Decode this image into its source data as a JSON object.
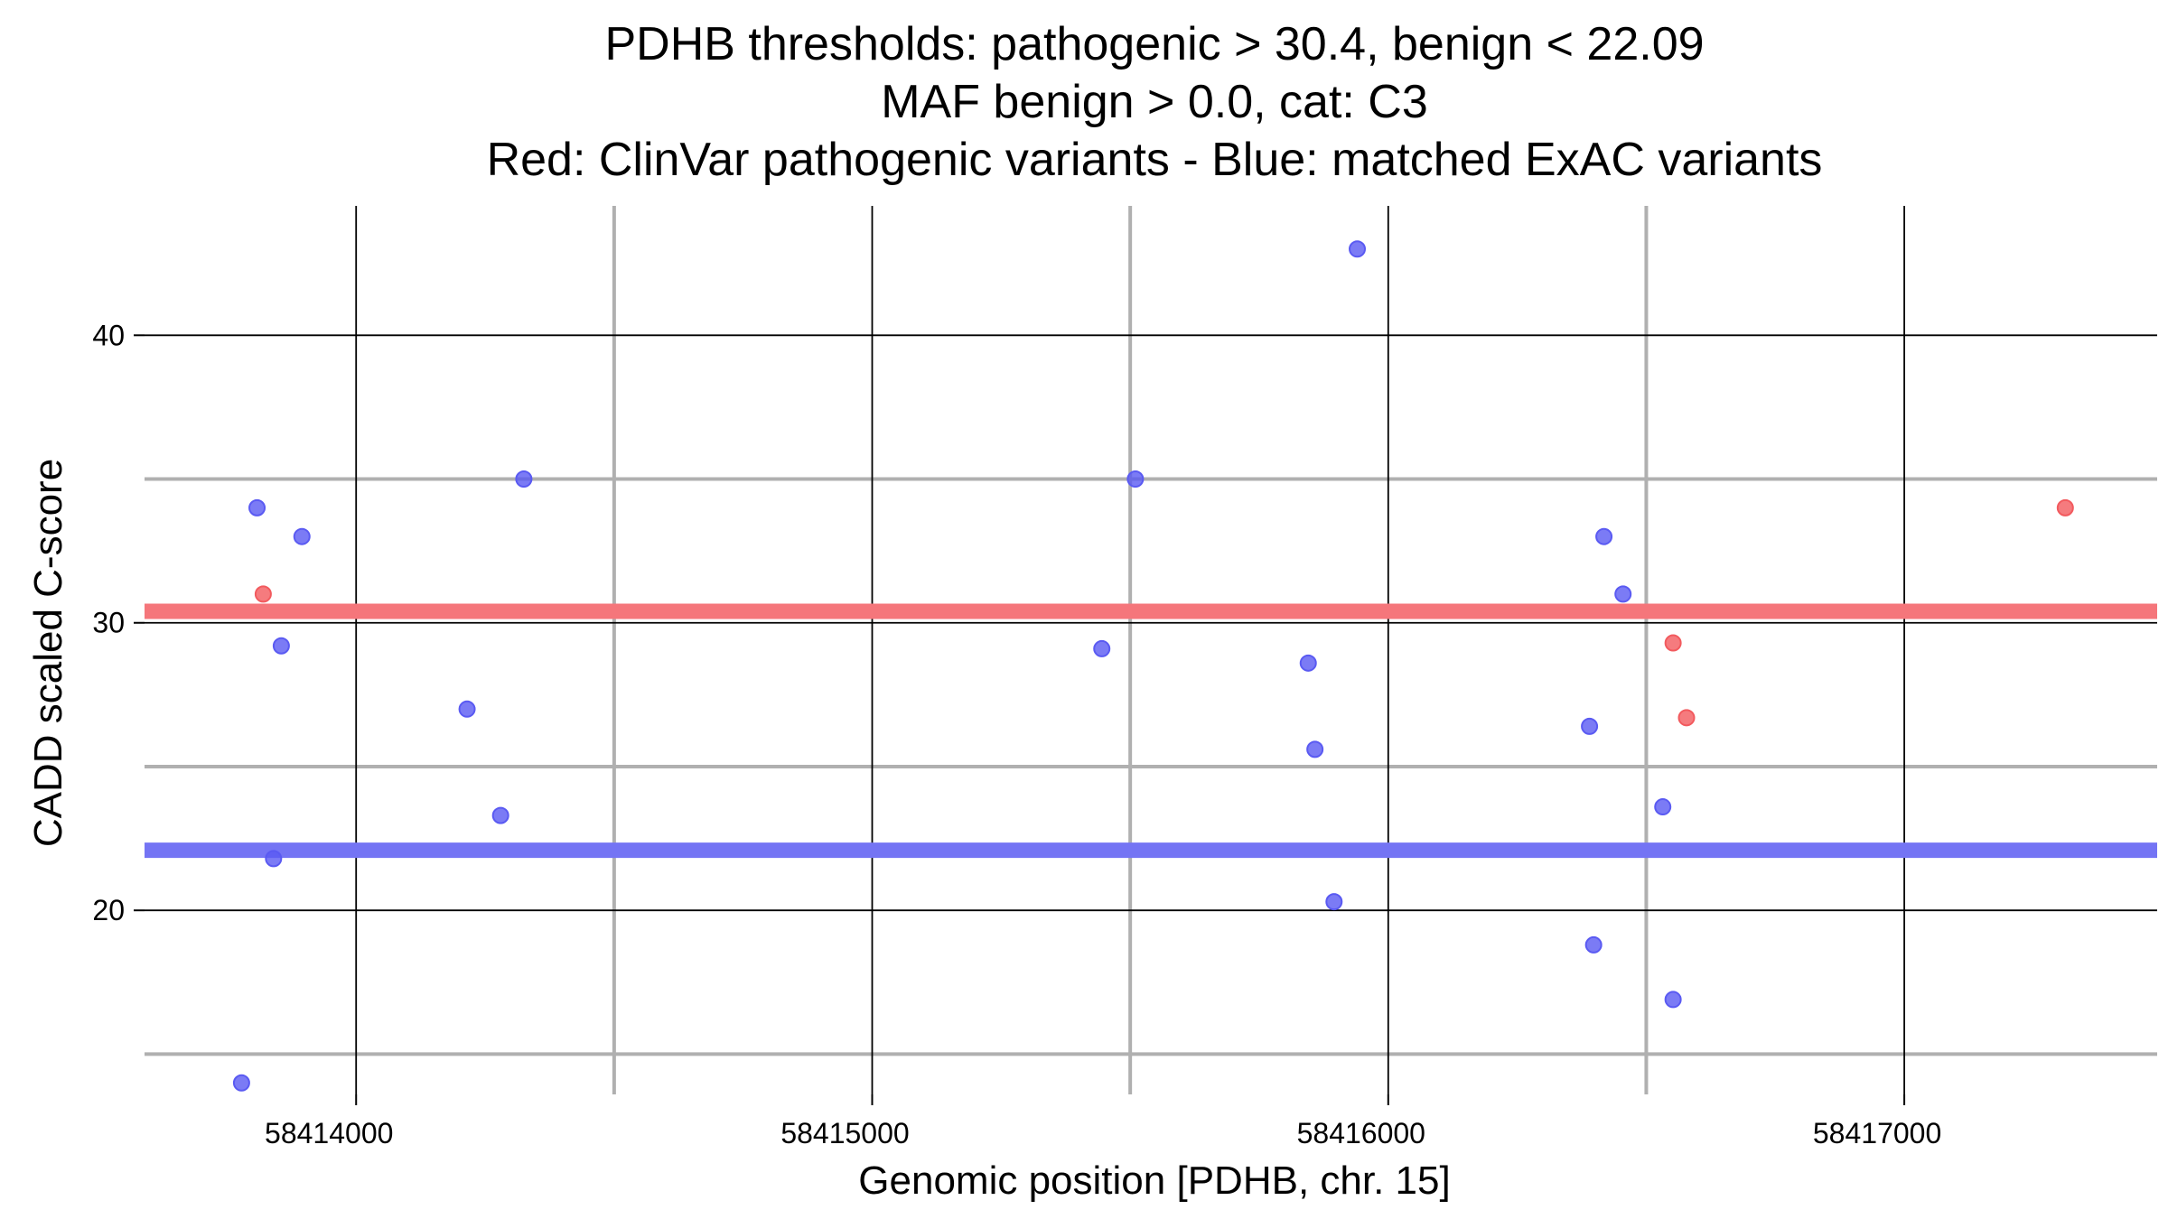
{
  "chart_data": {
    "type": "scatter",
    "title_lines": [
      "PDHB thresholds: pathogenic > 30.4, benign < 22.09",
      "MAF benign > 0.0, cat: C3",
      "Red: ClinVar pathogenic variants - Blue: matched ExAC variants"
    ],
    "xlabel": "Genomic position [PDHB, chr. 15]",
    "ylabel": "CADD scaled C-score",
    "xlim": [
      58413590,
      58417490
    ],
    "ylim": [
      13.6,
      44.5
    ],
    "x_ticks": [
      {
        "value": 58414000,
        "label": "58414000"
      },
      {
        "value": 58415000,
        "label": "58415000"
      },
      {
        "value": 58416000,
        "label": "58416000"
      },
      {
        "value": 58417000,
        "label": "58417000"
      }
    ],
    "x_minor_grid": [
      58414500,
      58415500,
      58416500
    ],
    "y_ticks": [
      {
        "value": 20,
        "label": "20"
      },
      {
        "value": 30,
        "label": "30"
      },
      {
        "value": 40,
        "label": "40"
      }
    ],
    "y_minor_grid": [
      15,
      25,
      35
    ],
    "thresholds": [
      {
        "name": "pathogenic",
        "value": 30.4,
        "color": "#f5767b"
      },
      {
        "name": "benign",
        "value": 22.09,
        "color": "#7474f4"
      }
    ],
    "series": [
      {
        "name": "ClinVar pathogenic variants",
        "color": "#f25a5e",
        "points": [
          {
            "x": 58413820,
            "y": 31.0
          },
          {
            "x": 58416552,
            "y": 29.3
          },
          {
            "x": 58416578,
            "y": 26.7
          },
          {
            "x": 58417312,
            "y": 34.0
          }
        ]
      },
      {
        "name": "matched ExAC variants",
        "color": "#5a5af2",
        "points": [
          {
            "x": 58413778,
            "y": 14.0
          },
          {
            "x": 58413808,
            "y": 34.0
          },
          {
            "x": 58413840,
            "y": 21.8
          },
          {
            "x": 58413855,
            "y": 29.2
          },
          {
            "x": 58413895,
            "y": 33.0
          },
          {
            "x": 58414215,
            "y": 27.0
          },
          {
            "x": 58414280,
            "y": 23.3
          },
          {
            "x": 58414325,
            "y": 35.0
          },
          {
            "x": 58415445,
            "y": 29.1
          },
          {
            "x": 58415510,
            "y": 35.0
          },
          {
            "x": 58415845,
            "y": 28.6
          },
          {
            "x": 58415858,
            "y": 25.6
          },
          {
            "x": 58415895,
            "y": 20.3
          },
          {
            "x": 58415940,
            "y": 43.0
          },
          {
            "x": 58416390,
            "y": 26.4
          },
          {
            "x": 58416398,
            "y": 18.8
          },
          {
            "x": 58416418,
            "y": 33.0
          },
          {
            "x": 58416455,
            "y": 31.0
          },
          {
            "x": 58416532,
            "y": 23.6
          },
          {
            "x": 58416552,
            "y": 16.9
          }
        ]
      }
    ]
  }
}
